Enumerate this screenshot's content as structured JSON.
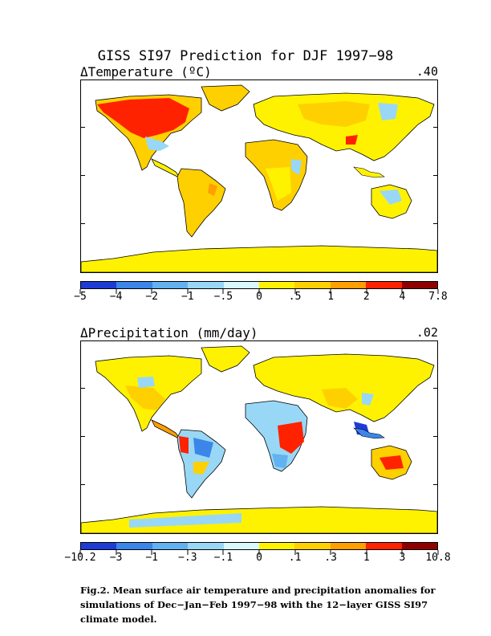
{
  "title": "GISS SI97 Prediction for DJF 1997−98",
  "temperature_panel": {
    "label": "ΔTemperature (ºC)",
    "global_mean": ".40",
    "colorbar": {
      "colors": [
        "#1f3bd6",
        "#3b86e8",
        "#62b1f0",
        "#98d8f6",
        "#d8f8fc",
        "#fff200",
        "#ffd000",
        "#ff9f00",
        "#ff2200",
        "#8e0000"
      ],
      "ticks": [
        "−5",
        "−4",
        "−2",
        "−1",
        "−.5",
        "0",
        ".5",
        "1",
        "2",
        "4",
        "7.8"
      ]
    }
  },
  "precipitation_panel": {
    "label": "ΔPrecipitation (mm/day)",
    "global_mean": ".02",
    "colorbar": {
      "colors": [
        "#1f3bd6",
        "#3b86e8",
        "#62b1f0",
        "#98d8f6",
        "#d8f8fc",
        "#fff200",
        "#ffd000",
        "#ff9f00",
        "#ff2200",
        "#8e0000"
      ],
      "ticks": [
        "−10.2",
        "−3",
        "−1",
        "−.3",
        "−.1",
        "0",
        ".1",
        ".3",
        "1",
        "3",
        "10.8"
      ]
    }
  },
  "caption": [
    "Fig.2. Mean surface air temperature and precipitation anomalies for",
    "simulations of Dec−Jan−Feb 1997−98 with the 12−layer GISS SI97",
    "climate model."
  ]
}
